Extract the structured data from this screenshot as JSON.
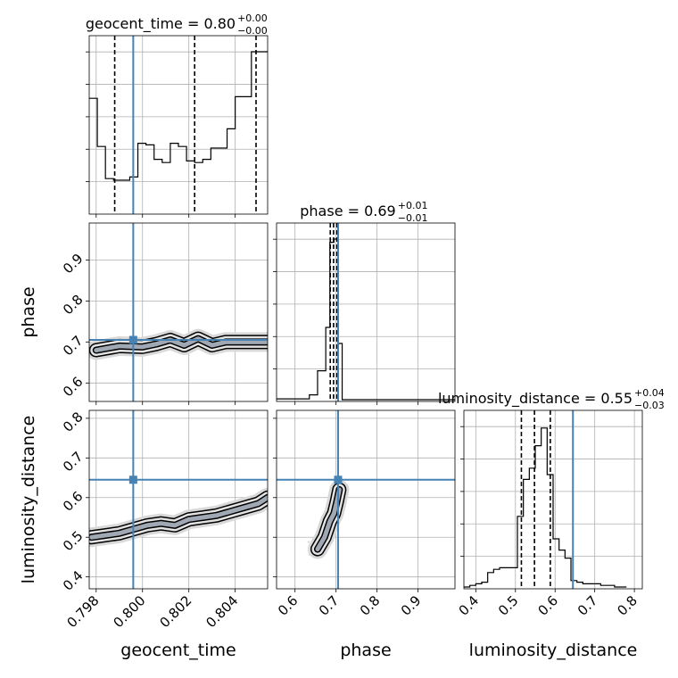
{
  "chart_data": {
    "type": "corner",
    "parameters": [
      "geocent_time",
      "phase",
      "luminosity_distance"
    ],
    "truths": {
      "geocent_time": 0.7996,
      "phase": 0.705,
      "luminosity_distance": 0.645
    },
    "truth_color": "#4682b4",
    "titles": {
      "geocent_time": {
        "text": "geocent_time = 0.80",
        "plus": "+0.00",
        "minus": "−0.00"
      },
      "phase": {
        "text": "phase = 0.69",
        "plus": "+0.01",
        "minus": "−0.01"
      },
      "luminosity_distance": {
        "text": "luminosity_distance = 0.55",
        "plus": "+0.04",
        "minus": "−0.03"
      }
    },
    "axis_labels": {
      "geocent_time": "geocent_time",
      "phase": "phase",
      "luminosity_distance": "luminosity_distance"
    },
    "ranges": {
      "geocent_time": [
        0.7977,
        0.8054
      ],
      "phase": [
        0.555,
        0.99
      ],
      "luminosity_distance": [
        0.37,
        0.82
      ]
    },
    "ticks": {
      "geocent_time": [
        "0.798",
        "0.800",
        "0.802",
        "0.804"
      ],
      "phase": [
        "0.6",
        "0.7",
        "0.8",
        "0.9"
      ],
      "luminosity_distance": [
        "0.4",
        "0.5",
        "0.6",
        "0.7",
        "0.8"
      ]
    },
    "hist_geocent_time": {
      "edges": [
        0.7977,
        0.79805,
        0.7984,
        0.79875,
        0.7991,
        0.79945,
        0.7998,
        0.80015,
        0.8005,
        0.80085,
        0.8012,
        0.80155,
        0.8019,
        0.80225,
        0.8026,
        0.80295,
        0.8033,
        0.80365,
        0.804,
        0.80435,
        0.8047,
        0.805,
        0.8054
      ],
      "counts": [
        0.71,
        0.41,
        0.21,
        0.2,
        0.2,
        0.22,
        0.43,
        0.42,
        0.33,
        0.31,
        0.43,
        0.41,
        0.32,
        0.31,
        0.33,
        0.4,
        0.4,
        0.52,
        0.72,
        0.72,
        1.0,
        1.0
      ],
      "quantiles": [
        0.7988,
        0.80225,
        0.8049
      ]
    },
    "hist_phase": {
      "edges": [
        0.555,
        0.575,
        0.595,
        0.615,
        0.635,
        0.655,
        0.675,
        0.685,
        0.695,
        0.705,
        0.715,
        0.74,
        0.77,
        0.99
      ],
      "counts": [
        0.005,
        0.005,
        0.005,
        0.005,
        0.03,
        0.18,
        0.45,
        0.98,
        1.0,
        0.35,
        0.0,
        0.0,
        0.0
      ],
      "quantiles": [
        0.686,
        0.694,
        0.702
      ]
    },
    "hist_luminosity_distance": {
      "edges": [
        0.37,
        0.385,
        0.4,
        0.415,
        0.43,
        0.445,
        0.46,
        0.475,
        0.49,
        0.505,
        0.52,
        0.535,
        0.55,
        0.565,
        0.58,
        0.595,
        0.61,
        0.625,
        0.64,
        0.655,
        0.67,
        0.685,
        0.7,
        0.715,
        0.73,
        0.75,
        0.78
      ],
      "counts": [
        0.0,
        0.01,
        0.02,
        0.03,
        0.09,
        0.11,
        0.12,
        0.12,
        0.12,
        0.44,
        0.67,
        0.74,
        0.88,
        0.99,
        0.7,
        0.3,
        0.23,
        0.18,
        0.04,
        0.03,
        0.02,
        0.02,
        0.02,
        0.01,
        0.01,
        0.0
      ],
      "quantiles": [
        0.515,
        0.548,
        0.588
      ]
    },
    "contours": {
      "geocent_time_phase": {
        "x": [
          0.798,
          0.799,
          0.8,
          0.8006,
          0.8012,
          0.8018,
          0.8024,
          0.803,
          0.8036,
          0.8042,
          0.8048,
          0.8054
        ],
        "y": [
          0.68,
          0.69,
          0.688,
          0.695,
          0.705,
          0.692,
          0.708,
          0.692,
          0.7,
          0.7,
          0.7,
          0.7
        ]
      },
      "geocent_time_luminosity_distance": {
        "x": [
          0.7978,
          0.7984,
          0.799,
          0.7996,
          0.8002,
          0.8008,
          0.8014,
          0.802,
          0.8026,
          0.8032,
          0.8038,
          0.8044,
          0.805,
          0.8054
        ],
        "y": [
          0.5,
          0.505,
          0.51,
          0.52,
          0.53,
          0.535,
          0.53,
          0.545,
          0.55,
          0.555,
          0.565,
          0.575,
          0.585,
          0.6
        ]
      },
      "phase_luminosity_distance": {
        "x": [
          0.655,
          0.672,
          0.685,
          0.695,
          0.702,
          0.708
        ],
        "y": [
          0.47,
          0.5,
          0.54,
          0.56,
          0.59,
          0.62
        ]
      }
    }
  }
}
